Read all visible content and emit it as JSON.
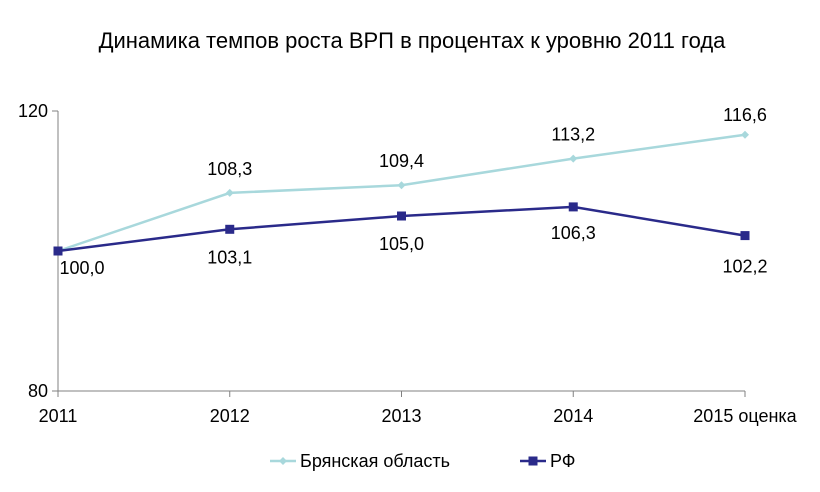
{
  "chart_data": {
    "type": "line",
    "title": "Динамика темпов роста ВРП в процентах к уровню 2011 года",
    "categories": [
      "2011",
      "2012",
      "2013",
      "2014",
      "2015 оценка"
    ],
    "ylim": [
      80,
      120
    ],
    "yticks": [
      "80",
      "120"
    ],
    "grid": false,
    "legend_position": "bottom",
    "series": [
      {
        "name": "Брянская область",
        "color": "#a8d8dc",
        "marker": "diamond",
        "values": [
          100.0,
          108.3,
          109.4,
          113.2,
          116.6
        ],
        "labels": [
          "",
          "108,3",
          "109,4",
          "113,2",
          "116,6"
        ]
      },
      {
        "name": "РФ",
        "color": "#2a2a8a",
        "marker": "square",
        "values": [
          100.0,
          103.1,
          105.0,
          106.3,
          102.2
        ],
        "labels": [
          "100,0",
          "103,1",
          "105,0",
          "106,3",
          "102,2"
        ]
      }
    ]
  }
}
